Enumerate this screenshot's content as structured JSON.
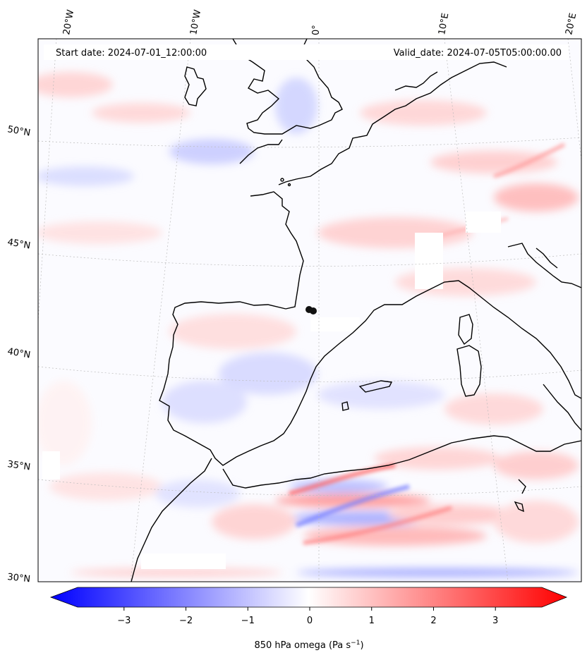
{
  "header": {
    "start_date": "Start date: 2024-07-01_12:00:00",
    "valid_date": "Valid_date: 2024-07-05T05:00:00.00"
  },
  "longitude_labels": [
    "20°W",
    "10°W",
    "0°",
    "10°E",
    "20°E"
  ],
  "latitude_labels": [
    "50°N",
    "45°N",
    "40°N",
    "35°N",
    "30°N"
  ],
  "colorbar": {
    "label": "850 hPa omega (Pa s",
    "label_exponent": "−1",
    "label_close": ")",
    "ticks": [
      "−3",
      "−2",
      "−1",
      "0",
      "1",
      "2",
      "3"
    ],
    "tick_values": [
      -3,
      -2,
      -1,
      0,
      1,
      2,
      3
    ],
    "range": [
      -3.75,
      3.75
    ],
    "colormap": "bwr",
    "low_color": "#0000ff",
    "mid_color": "#ffffff",
    "high_color": "#ff0000"
  },
  "map": {
    "variable": "850 hPa omega",
    "projection": "lambert-conformal",
    "extent_lon": [
      -20,
      20
    ],
    "extent_lat": [
      30,
      53
    ],
    "coastline_color": "#000000",
    "gridline_color": "#bbbbbb"
  }
}
